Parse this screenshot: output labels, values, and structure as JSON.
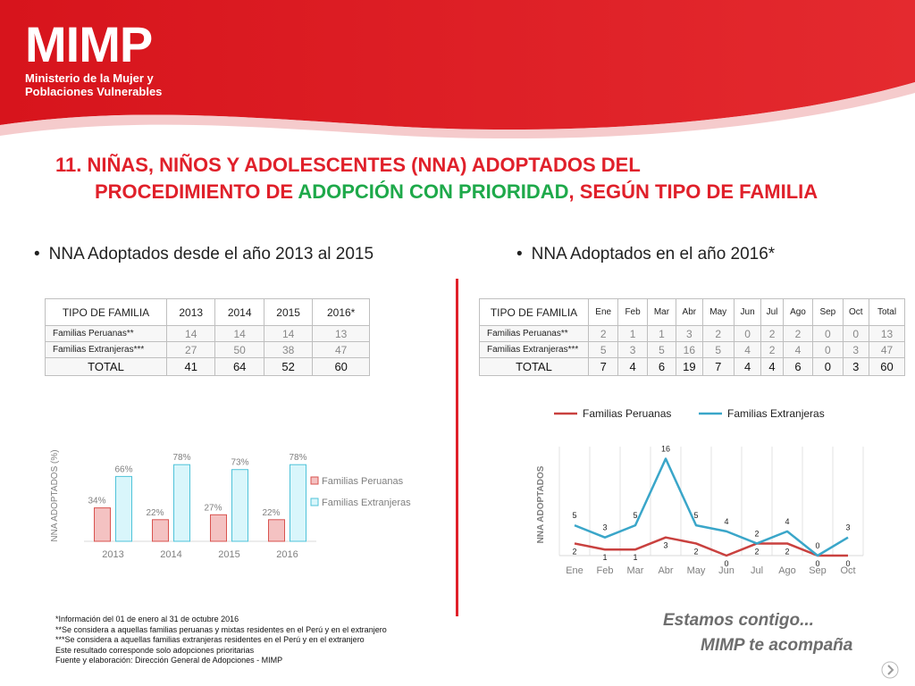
{
  "brand": {
    "logo": "MIMP",
    "subtitle_line1": "Ministerio de la Mujer y",
    "subtitle_line2": "Poblaciones Vulnerables",
    "colors": {
      "red": "#e0202a",
      "green": "#1ea94a"
    }
  },
  "title": {
    "line1": "11. NIÑAS, NIÑOS Y ADOLESCENTES (NNA) ADOPTADOS DEL",
    "line2_a": "PROCEDIMIENTO DE ",
    "line2_b": "ADOPCIÓN CON PRIORIDAD",
    "line2_c": ", SEGÚN TIPO DE FAMILIA"
  },
  "left": {
    "bullet": "NNA Adoptados desde el año 2013 al 2015",
    "table": {
      "headers": [
        "TIPO DE FAMILIA",
        "2013",
        "2014",
        "2015",
        "2016*"
      ],
      "rows": [
        [
          "Familias Peruanas**",
          "14",
          "14",
          "14",
          "13"
        ],
        [
          "Familias Extranjeras***",
          "27",
          "50",
          "38",
          "47"
        ]
      ],
      "total": [
        "TOTAL",
        "41",
        "64",
        "52",
        "60"
      ]
    }
  },
  "right": {
    "bullet": "NNA Adoptados en el año 2016*",
    "table": {
      "headers": [
        "TIPO DE FAMILIA",
        "Ene",
        "Feb",
        "Mar",
        "Abr",
        "May",
        "Jun",
        "Jul",
        "Ago",
        "Sep",
        "Oct",
        "Total"
      ],
      "rows": [
        [
          "Familias Peruanas**",
          "2",
          "1",
          "1",
          "3",
          "2",
          "0",
          "2",
          "2",
          "0",
          "0",
          "13"
        ],
        [
          "Familias Extranjeras***",
          "5",
          "3",
          "5",
          "16",
          "5",
          "4",
          "2",
          "4",
          "0",
          "3",
          "47"
        ]
      ],
      "total": [
        "TOTAL",
        "7",
        "4",
        "6",
        "19",
        "7",
        "4",
        "4",
        "6",
        "0",
        "3",
        "60"
      ]
    }
  },
  "chart_data": [
    {
      "type": "bar",
      "categories": [
        "2013",
        "2014",
        "2015",
        "2016"
      ],
      "series": [
        {
          "name": "Familias Peruanas",
          "values": [
            34,
            22,
            27,
            22
          ],
          "labels": [
            "34%",
            "22%",
            "27%",
            "22%"
          ],
          "color": "#f4c2c2",
          "border": "#d9534f"
        },
        {
          "name": "Familias Extranjeras",
          "values": [
            66,
            78,
            73,
            78
          ],
          "labels": [
            "66%",
            "78%",
            "73%",
            "78%"
          ],
          "color": "#d9f6fb",
          "border": "#4fc3d9"
        }
      ],
      "ylabel": "NNA ADOPTADOS (%)",
      "ylim": [
        0,
        100
      ],
      "legend": "right",
      "grid": false
    },
    {
      "type": "line",
      "categories": [
        "Ene",
        "Feb",
        "Mar",
        "Abr",
        "May",
        "Jun",
        "Jul",
        "Ago",
        "Sep",
        "Oct"
      ],
      "series": [
        {
          "name": "Familias Peruanas",
          "values": [
            2,
            1,
            1,
            3,
            2,
            0,
            2,
            2,
            0,
            0
          ],
          "color": "#c9413f"
        },
        {
          "name": "Familias Extranjeras",
          "values": [
            5,
            3,
            5,
            16,
            5,
            4,
            2,
            4,
            0,
            3
          ],
          "color": "#3aa6c9"
        }
      ],
      "ylabel": "NNA ADOPTADOS",
      "ylim": [
        0,
        18
      ],
      "legend": "top",
      "grid": true
    }
  ],
  "footnotes": [
    "*Información del 01 de enero al 31 de octubre 2016",
    "**Se considera a aquellas familias peruanas y mixtas residentes en el Perú y en el extranjero",
    "***Se considera a aquellas familias extranjeras residentes en el Perú y en el extranjero",
    "Este resultado corresponde solo adopciones prioritarias",
    "Fuente y elaboración: Dirección General de Adopciones - MIMP"
  ],
  "slogan": {
    "line1": "Estamos contigo...",
    "line2": "MIMP te acompaña"
  },
  "nav": {
    "icon": "next-arrow-icon"
  }
}
